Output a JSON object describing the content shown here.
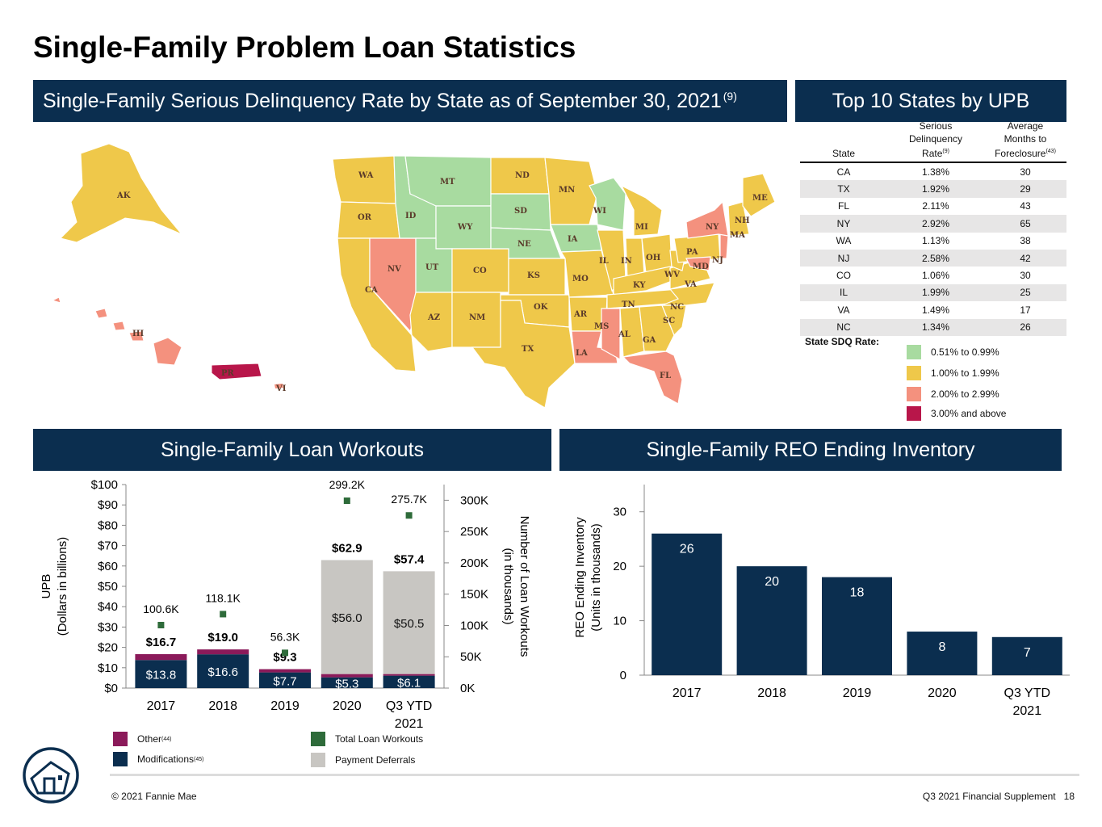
{
  "page": {
    "title": "Single-Family Problem Loan Statistics",
    "footer_left": "© 2021 Fannie Mae",
    "footer_right": "Q3 2021 Financial Supplement",
    "page_number": "18"
  },
  "map": {
    "banner_title": "Single-Family Serious Delinquency Rate by State as of September 30, 2021",
    "banner_note": "(9)",
    "legend_title": "State SDQ Rate:",
    "legend": [
      {
        "label": "0.51% to 0.99%",
        "color": "#a8dba0"
      },
      {
        "label": "1.00% to 1.99%",
        "color": "#efc84a"
      },
      {
        "label": "2.00% to 2.99%",
        "color": "#f4917e"
      },
      {
        "label": "3.00% and above",
        "color": "#b8164a"
      }
    ],
    "state_labels": [
      "AK",
      "WA",
      "MT",
      "ND",
      "MN",
      "ME",
      "OR",
      "ID",
      "WY",
      "SD",
      "WI",
      "NH",
      "NY",
      "MA",
      "MI",
      "NE",
      "IA",
      "PA",
      "NJ",
      "NV",
      "UT",
      "CO",
      "KS",
      "MO",
      "IL",
      "IN",
      "OH",
      "MD",
      "CA",
      "KY",
      "WV",
      "VA",
      "TN",
      "OK",
      "AR",
      "NC",
      "SC",
      "AZ",
      "NM",
      "MS",
      "AL",
      "GA",
      "TX",
      "LA",
      "FL",
      "HI",
      "PR",
      "VI"
    ]
  },
  "top10": {
    "banner_title": "Top 10 States by UPB",
    "headers": {
      "state": "State",
      "sdq_line1": "Serious",
      "sdq_line2": "Delinquency",
      "sdq_line3": "Rate",
      "sdq_note": "(9)",
      "months_line1": "Average",
      "months_line2": "Months to",
      "months_line3": "Foreclosure",
      "months_note": "(43)"
    },
    "rows": [
      {
        "state": "CA",
        "rate": "1.38%",
        "months": "30"
      },
      {
        "state": "TX",
        "rate": "1.92%",
        "months": "29"
      },
      {
        "state": "FL",
        "rate": "2.11%",
        "months": "43"
      },
      {
        "state": "NY",
        "rate": "2.92%",
        "months": "65"
      },
      {
        "state": "WA",
        "rate": "1.13%",
        "months": "38"
      },
      {
        "state": "NJ",
        "rate": "2.58%",
        "months": "42"
      },
      {
        "state": "CO",
        "rate": "1.06%",
        "months": "30"
      },
      {
        "state": "IL",
        "rate": "1.99%",
        "months": "25"
      },
      {
        "state": "VA",
        "rate": "1.49%",
        "months": "17"
      },
      {
        "state": "NC",
        "rate": "1.34%",
        "months": "26"
      }
    ]
  },
  "workouts": {
    "banner_title": "Single-Family Loan Workouts",
    "legend": {
      "other": "Other",
      "other_note": "(44)",
      "modifications": "Modifications",
      "modifications_note": "(45)",
      "total": "Total Loan Workouts",
      "deferrals": "Payment Deferrals"
    }
  },
  "reo": {
    "banner_title": "Single-Family REO Ending Inventory"
  },
  "chart_data": [
    {
      "type": "bar",
      "title": "Single-Family Loan Workouts",
      "ylabel": "UPB (Dollars in billions)",
      "y2label": "Number of Loan Workouts (in thousands)",
      "categories": [
        "2017",
        "2018",
        "2019",
        "2020",
        "Q3 YTD 2021"
      ],
      "ylim": [
        0,
        100
      ],
      "y2lim": [
        0,
        325
      ],
      "yticks": [
        "$0",
        "$10",
        "$20",
        "$30",
        "$40",
        "$50",
        "$60",
        "$70",
        "$80",
        "$90",
        "$100"
      ],
      "y2ticks": [
        "0K",
        "50K",
        "100K",
        "150K",
        "200K",
        "250K",
        "300K"
      ],
      "stacked": true,
      "series": [
        {
          "name": "Modifications",
          "values": [
            13.8,
            16.6,
            7.7,
            5.3,
            6.1
          ],
          "labels": [
            "$13.8",
            "$16.6",
            "$7.7",
            "$5.3",
            "$6.1"
          ],
          "color": "#0b2e4f"
        },
        {
          "name": "Other",
          "values": [
            2.9,
            2.4,
            1.6,
            1.6,
            0.8
          ],
          "color": "#8b1a5a"
        },
        {
          "name": "Payment Deferrals",
          "values": [
            0,
            0,
            0,
            56.0,
            50.5
          ],
          "labels": [
            "",
            "",
            "",
            "$56.0",
            "$50.5"
          ],
          "color": "#c8c6c2"
        }
      ],
      "totals": [
        "$16.7",
        "$19.0",
        "$9.3",
        "$62.9",
        "$57.4"
      ],
      "line_series": {
        "name": "Total Loan Workouts",
        "axis": "secondary",
        "values": [
          100.6,
          118.1,
          56.3,
          299.2,
          275.7
        ],
        "labels": [
          "100.6K",
          "118.1K",
          "56.3K",
          "299.2K",
          "275.7K"
        ],
        "color": "#2e6b3a"
      }
    },
    {
      "type": "bar",
      "title": "Single-Family REO Ending Inventory",
      "ylabel": "REO Ending Inventory (Units in thousands)",
      "categories": [
        "2017",
        "2018",
        "2019",
        "2020",
        "Q3 YTD 2021"
      ],
      "ylim": [
        0,
        35
      ],
      "yticks": [
        "0",
        "10",
        "20",
        "30"
      ],
      "values": [
        26,
        20,
        18,
        8,
        7
      ],
      "color": "#0b2e4f"
    }
  ]
}
